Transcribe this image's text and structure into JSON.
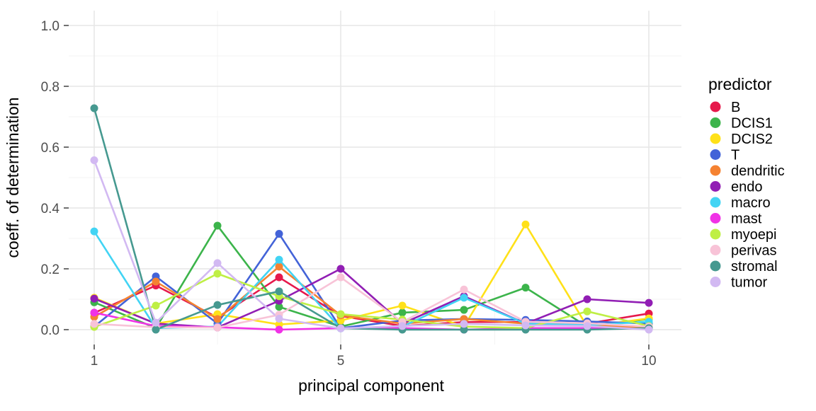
{
  "chart_data": {
    "type": "line",
    "title": "",
    "xlabel": "principal component",
    "ylabel": "coeff. of determination",
    "legend_title": "predictor",
    "legend_position": "right",
    "grid": "on",
    "x": [
      1,
      2,
      3,
      4,
      5,
      6,
      7,
      8,
      9,
      10
    ],
    "x_ticks": [
      1,
      5,
      10
    ],
    "x_minor_ticks": [
      3,
      7.5
    ],
    "y_tick_labels": [
      "0.0",
      "0.2",
      "0.4",
      "0.6",
      "0.8",
      "1.0"
    ],
    "y_ticks": [
      0.0,
      0.2,
      0.4,
      0.6,
      0.8,
      1.0
    ],
    "y_minor_ticks": [
      0.1,
      0.3,
      0.5,
      0.7,
      0.9
    ],
    "xlim": [
      0.55,
      10.45
    ],
    "ylim": [
      -0.05,
      1.05
    ],
    "series": [
      {
        "name": "B",
        "color": "#e6194b",
        "values": [
          0.055,
          0.145,
          0.04,
          0.172,
          0.045,
          0.012,
          0.025,
          0.025,
          0.02,
          0.053
        ]
      },
      {
        "name": "DCIS1",
        "color": "#3cb44b",
        "values": [
          0.09,
          0.005,
          0.342,
          0.075,
          0.01,
          0.056,
          0.065,
          0.138,
          0.01,
          0.035
        ]
      },
      {
        "name": "DCIS2",
        "color": "#ffe119",
        "values": [
          0.105,
          0.02,
          0.051,
          0.017,
          0.03,
          0.079,
          0.01,
          0.346,
          0.01,
          0.037
        ]
      },
      {
        "name": "T",
        "color": "#4363d8",
        "values": [
          0.01,
          0.175,
          0.02,
          0.315,
          0.005,
          0.03,
          0.035,
          0.032,
          0.027,
          0.02
        ]
      },
      {
        "name": "dendritic",
        "color": "#f58231",
        "values": [
          0.042,
          0.158,
          0.035,
          0.207,
          0.047,
          0.02,
          0.035,
          0.02,
          0.017,
          0.005
        ]
      },
      {
        "name": "endo",
        "color": "#911eb4",
        "values": [
          0.102,
          0.02,
          0.007,
          0.095,
          0.2,
          0.02,
          0.11,
          0.02,
          0.1,
          0.088
        ]
      },
      {
        "name": "macro",
        "color": "#42d4f4",
        "values": [
          0.323,
          0.005,
          0.01,
          0.23,
          0.004,
          0.01,
          0.105,
          0.02,
          0.015,
          0.026
        ]
      },
      {
        "name": "mast",
        "color": "#f032e6",
        "values": [
          0.056,
          0.012,
          0.008,
          0.0,
          0.005,
          0.005,
          0.0,
          0.005,
          0.005,
          0.003
        ]
      },
      {
        "name": "myoepi",
        "color": "#bfef45",
        "values": [
          0.009,
          0.079,
          0.184,
          0.11,
          0.051,
          0.033,
          0.01,
          0.005,
          0.06,
          0.012
        ]
      },
      {
        "name": "perivas",
        "color": "#f8c3d7",
        "values": [
          0.019,
          0.008,
          0.007,
          0.049,
          0.172,
          0.025,
          0.132,
          0.026,
          0.021,
          0.01
        ]
      },
      {
        "name": "stromal",
        "color": "#469990",
        "values": [
          0.728,
          0.0,
          0.081,
          0.126,
          0.005,
          0.0,
          0.0,
          0.0,
          0.0,
          0.005
        ]
      },
      {
        "name": "tumor",
        "color": "#d2b9f2",
        "values": [
          0.557,
          0.023,
          0.219,
          0.036,
          0.004,
          0.012,
          0.019,
          0.014,
          0.012,
          0.0
        ]
      }
    ],
    "style": {
      "major_grid_color": "#e6e6e6",
      "minor_grid_color": "#f3f3f3",
      "tick_mark_color": "#333333",
      "point_radius": 5.5,
      "line_width": 2.6
    }
  }
}
